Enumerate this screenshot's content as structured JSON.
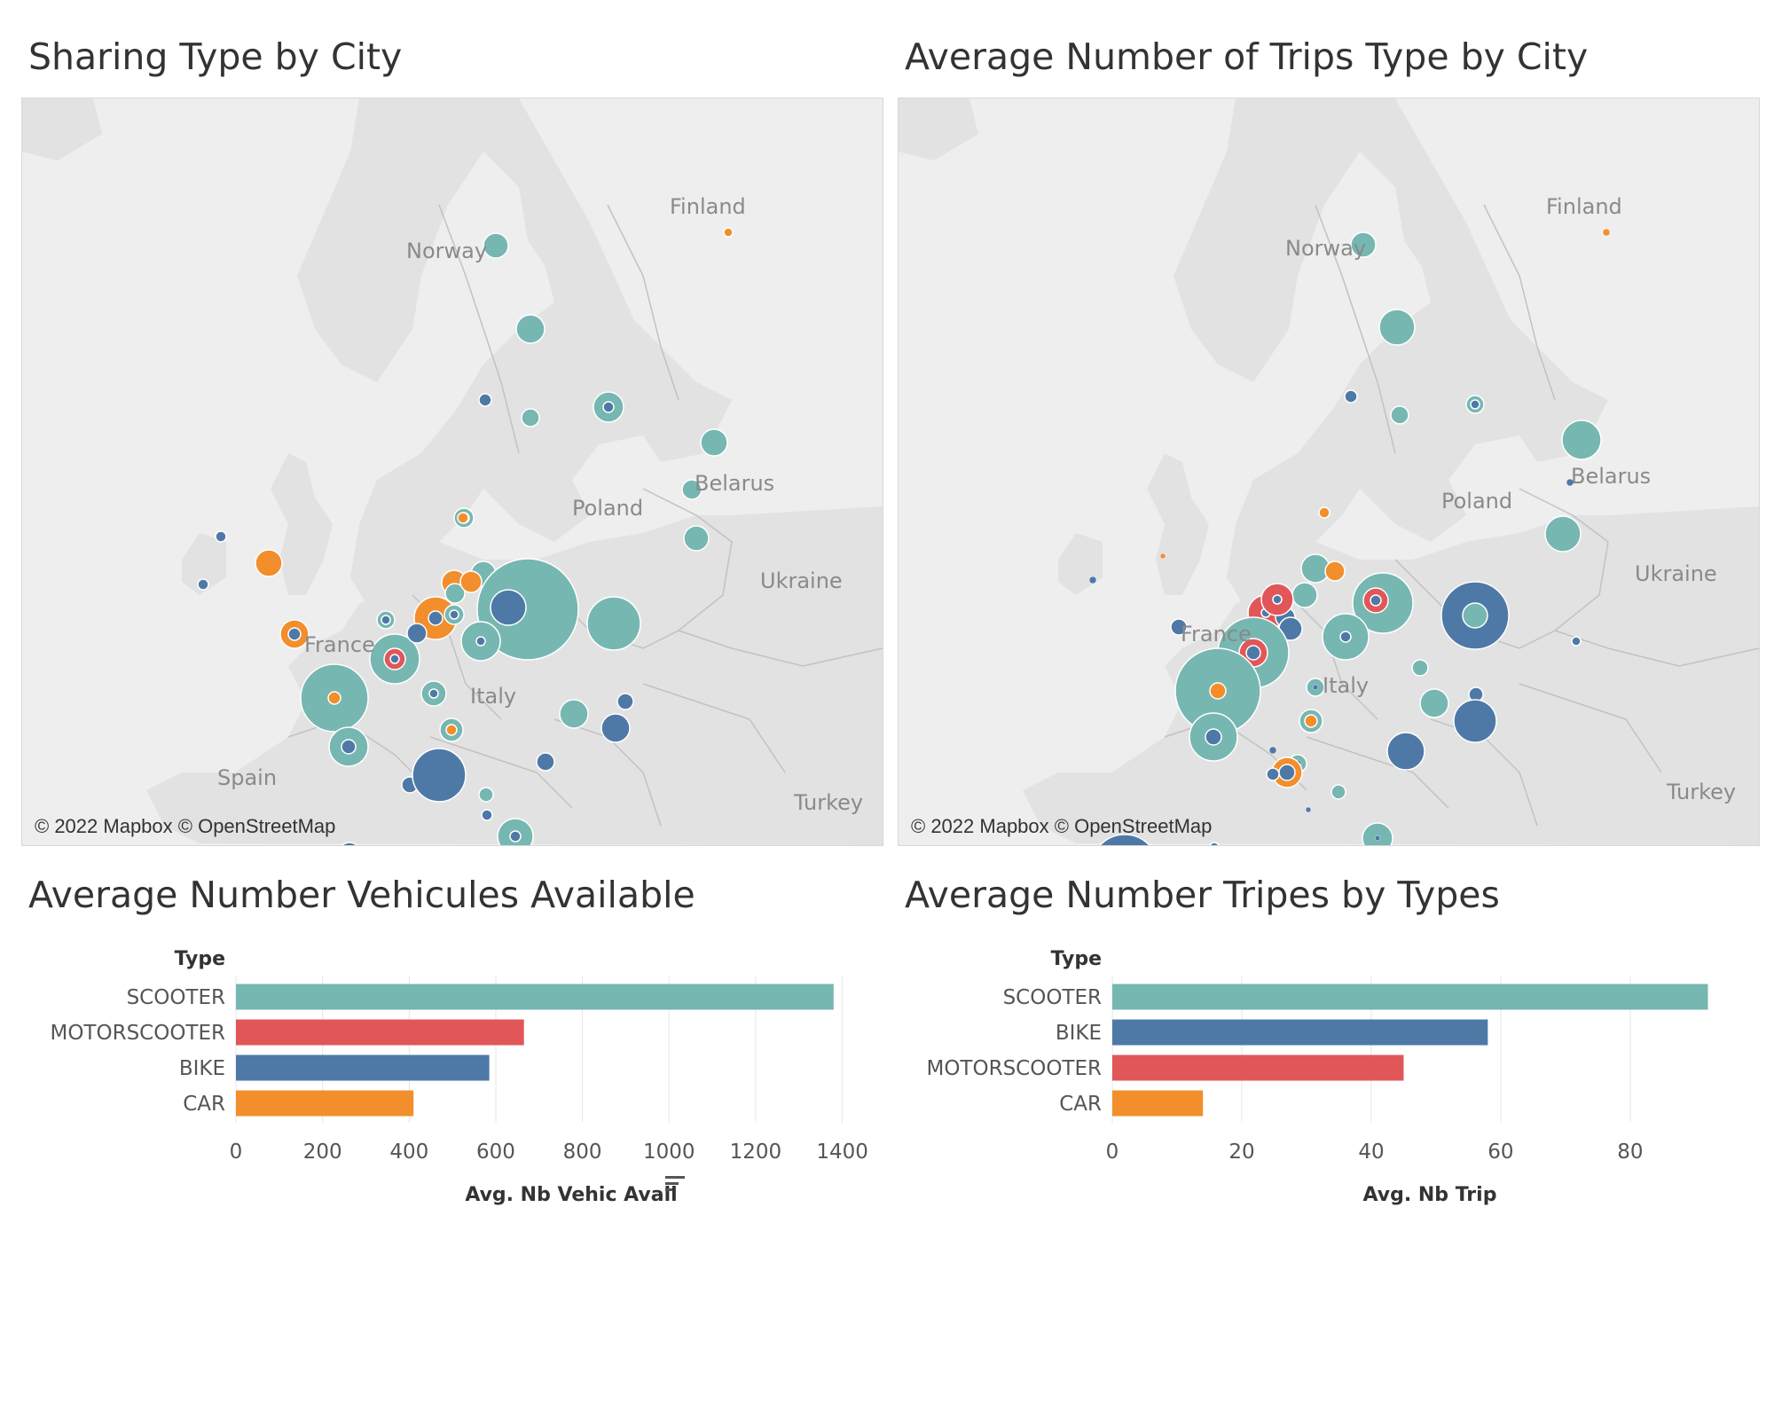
{
  "colors": {
    "SCOOTER": "#76b7b2",
    "MOTORSCOOTER": "#e15759",
    "BIKE": "#4e79a7",
    "CAR": "#f28e2b",
    "map_land": "#eeeeee",
    "map_sea": "#ffffff"
  },
  "map1": {
    "title": "Sharing Type by City",
    "attribution": "© 2022 Mapbox © OpenStreetMap",
    "labels": {
      "finland": "Finland",
      "norway": "Norway",
      "belarus": "Belarus",
      "ukraine": "Ukraine",
      "turkey": "Turkey",
      "poland": "Poland",
      "france": "France",
      "italy": "Italy",
      "spain": "Spain"
    }
  },
  "map2": {
    "title": "Average Number of Trips Type by City",
    "attribution": "© 2022 Mapbox © OpenStreetMap",
    "labels": {
      "finland": "Finland",
      "norway": "Norway",
      "belarus": "Belarus",
      "ukraine": "Ukraine",
      "turkey": "Turkey",
      "poland": "Poland",
      "france": "France",
      "italy": "Italy"
    }
  },
  "chart_data": [
    {
      "type": "bar",
      "orientation": "horizontal",
      "title": "Average Number Vehicules Available",
      "type_header": "Type",
      "categories": [
        "SCOOTER",
        "MOTORSCOOTER",
        "BIKE",
        "CAR"
      ],
      "values": [
        1380,
        665,
        585,
        410
      ],
      "xlabel": "Avg. Nb Vehic Avail",
      "xlim": [
        0,
        1450
      ],
      "xticks": [
        0,
        200,
        400,
        600,
        800,
        1000,
        1200,
        1400
      ],
      "sorted": true,
      "grid": true
    },
    {
      "type": "bar",
      "orientation": "horizontal",
      "title": "Average Number Tripes by Types",
      "type_header": "Type",
      "categories": [
        "SCOOTER",
        "BIKE",
        "MOTORSCOOTER",
        "CAR"
      ],
      "values": [
        92,
        58,
        45,
        14
      ],
      "xlabel": "Avg. Nb Trip",
      "xlim": [
        0,
        97
      ],
      "xticks": [
        0,
        20,
        40,
        60,
        80
      ],
      "grid": true
    }
  ]
}
